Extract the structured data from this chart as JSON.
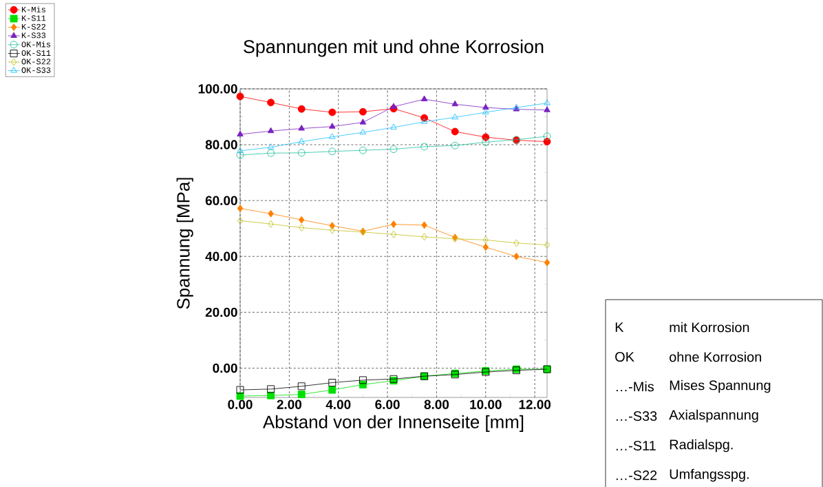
{
  "chart_data": {
    "type": "line",
    "title": "Spannungen mit und ohne Korrosion",
    "xlabel": "Abstand von der Innenseite [mm]",
    "ylabel": "Spannung [MPa]",
    "x": [
      0,
      1.25,
      2.5,
      3.75,
      5,
      6.25,
      7.5,
      8.75,
      10,
      11.25,
      12.5
    ],
    "series": [
      {
        "name": "K-Mis",
        "color": "#ff0000",
        "marker": "circle",
        "values": [
          97.3,
          95.1,
          92.8,
          91.6,
          91.8,
          92.9,
          89.6,
          84.7,
          82.7,
          81.6,
          81.1
        ]
      },
      {
        "name": "K-S11",
        "color": "#00e000",
        "marker": "square",
        "values": [
          -10.0,
          -9.8,
          -9.4,
          -7.8,
          -5.9,
          -4.5,
          -2.9,
          -1.9,
          -1.0,
          -0.4,
          -0.4
        ]
      },
      {
        "name": "K-S22",
        "color": "#ff8000",
        "marker": "diamond",
        "values": [
          57.2,
          55.3,
          53.1,
          51.0,
          49.0,
          51.5,
          51.2,
          46.8,
          43.3,
          40.0,
          37.8
        ]
      },
      {
        "name": "K-S33",
        "color": "#7b22c0",
        "marker": "triangle",
        "values": [
          83.7,
          84.9,
          85.8,
          86.5,
          88.0,
          93.6,
          96.3,
          94.5,
          93.3,
          92.7,
          92.4
        ]
      },
      {
        "name": "OK-Mis",
        "color": "#20c0a0",
        "marker": "circle-open",
        "values": [
          76.3,
          77.0,
          77.1,
          77.6,
          78.0,
          78.4,
          79.3,
          79.7,
          80.9,
          81.8,
          83.0
        ]
      },
      {
        "name": "OK-S11",
        "color": "#000000",
        "marker": "square-open",
        "values": [
          -7.8,
          -7.5,
          -6.5,
          -5.2,
          -4.3,
          -3.9,
          -2.9,
          -2.3,
          -1.4,
          -0.8,
          -0.4
        ]
      },
      {
        "name": "OK-S22",
        "color": "#c0c020",
        "marker": "diamond-open",
        "values": [
          52.8,
          51.6,
          50.3,
          49.4,
          48.7,
          47.9,
          47.0,
          46.3,
          45.9,
          44.8,
          44.1
        ]
      },
      {
        "name": "OK-S33",
        "color": "#20c0ff",
        "marker": "triangle-open",
        "values": [
          77.8,
          79.1,
          81.1,
          82.8,
          84.4,
          86.2,
          88.2,
          89.8,
          91.6,
          93.3,
          94.9
        ]
      }
    ],
    "xlim": [
      0,
      12.5
    ],
    "ylim": [
      -10.5,
      100
    ],
    "xticks": [
      {
        "value": 0,
        "label": "0.00"
      },
      {
        "value": 2,
        "label": "2.00"
      },
      {
        "value": 4,
        "label": "4.00"
      },
      {
        "value": 6,
        "label": "6.00"
      },
      {
        "value": 8,
        "label": "8.00"
      },
      {
        "value": 10,
        "label": "10.00"
      },
      {
        "value": 12,
        "label": "12.00"
      }
    ],
    "yticks": [
      {
        "value": 0,
        "label": "0.00"
      },
      {
        "value": 20,
        "label": "20.00"
      },
      {
        "value": 40,
        "label": "40.00"
      },
      {
        "value": 60,
        "label": "60.00"
      },
      {
        "value": 80,
        "label": "80.00"
      },
      {
        "value": 100,
        "label": "100.00"
      }
    ],
    "grid": true,
    "legend": "top left",
    "line_style": "solid",
    "annotations": [
      "K",
      "mit Korrosion",
      "OK",
      "ohne Korrosion",
      "…-Mis",
      "Mises Spannung",
      "…-S33",
      "Axialspannung",
      "…-S11",
      "Radialspg.",
      "…-S22",
      "Umfangsspg."
    ]
  }
}
